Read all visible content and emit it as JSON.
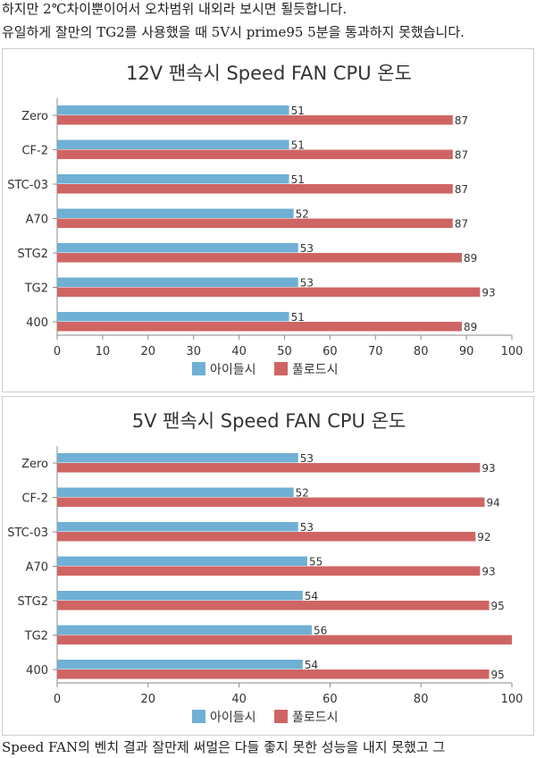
{
  "text": {
    "line1": "하지만 2℃차이뿐이어서 오차범위 내외라 보시면 될듯합니다.",
    "line2": "유일하게 잘만의 TG2를 사용했을 때 5V시 prime95 5분을 통과하지 못했습니다.",
    "line3": "Speed FAN의 벤치 결과 잘만제 써멀은 다들 좋지 못한 성능을 내지 못했고 그"
  },
  "colors": {
    "idle": "#6fb0d4",
    "full": "#cf6563"
  },
  "chart_data": [
    {
      "type": "bar",
      "orientation": "horizontal",
      "title": "12V 팬속시 Speed FAN CPU 온도",
      "categories": [
        "Zero",
        "CF-2",
        "STC-03",
        "A70",
        "STG2",
        "TG2",
        "400"
      ],
      "series": [
        {
          "name": "아이들시",
          "values": [
            51,
            51,
            51,
            52,
            53,
            53,
            51
          ]
        },
        {
          "name": "풀로드시",
          "values": [
            87,
            87,
            87,
            87,
            89,
            93,
            89
          ]
        }
      ],
      "xlim": [
        0,
        100
      ],
      "xticks": [
        0,
        10,
        20,
        30,
        40,
        50,
        60,
        70,
        80,
        90,
        100
      ],
      "legend_position": "bottom"
    },
    {
      "type": "bar",
      "orientation": "horizontal",
      "title": "5V 팬속시 Speed FAN CPU 온도",
      "categories": [
        "Zero",
        "CF-2",
        "STC-03",
        "A70",
        "STG2",
        "TG2",
        "400"
      ],
      "series": [
        {
          "name": "아이들시",
          "values": [
            53,
            52,
            53,
            55,
            54,
            56,
            54
          ]
        },
        {
          "name": "풀로드시",
          "values": [
            93,
            94,
            92,
            93,
            95,
            100,
            95
          ]
        }
      ],
      "data_labels": [
        [
          "53",
          "52",
          "53",
          "55",
          "54",
          "56",
          "54"
        ],
        [
          "93",
          "94",
          "92",
          "93",
          "95",
          "",
          "95"
        ]
      ],
      "xlim": [
        0,
        100
      ],
      "xticks": [
        0,
        20,
        40,
        60,
        80,
        100
      ],
      "legend_position": "bottom"
    }
  ]
}
